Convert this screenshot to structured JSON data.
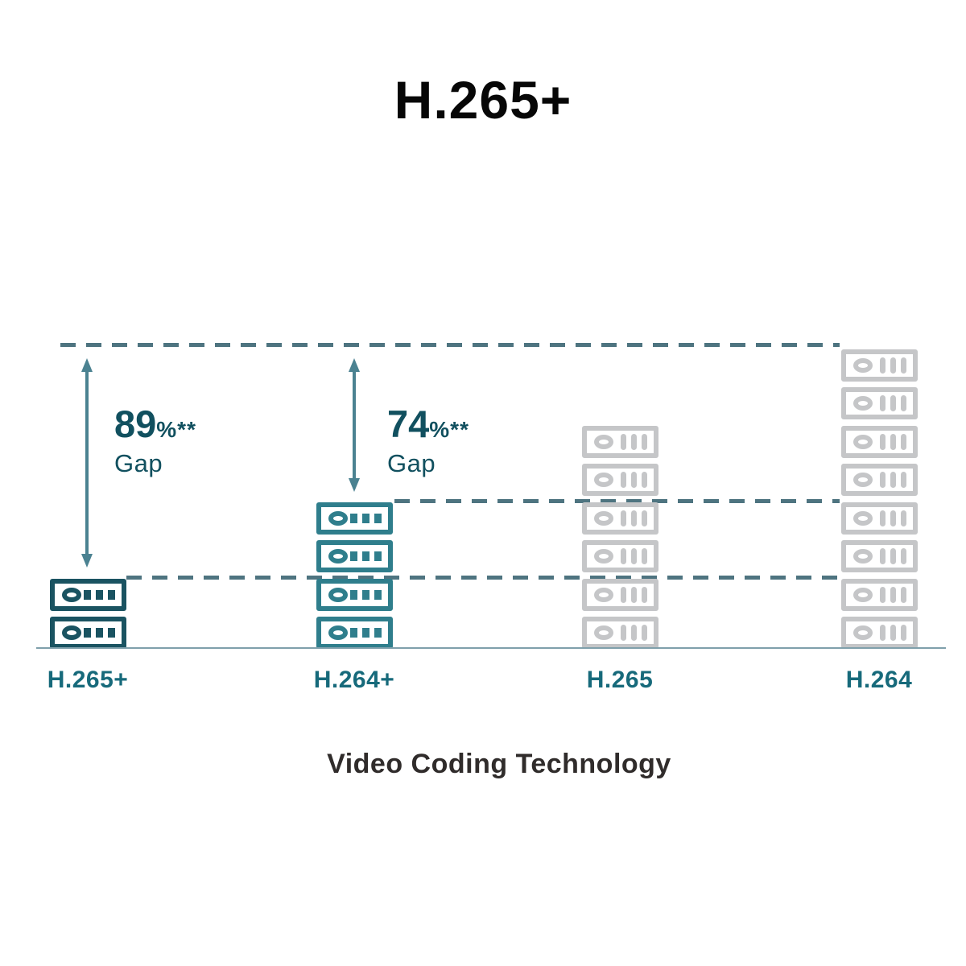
{
  "title": "H.265+",
  "xlabel": "Video Coding Technology",
  "gaps": [
    {
      "value": "89",
      "suffix": "%**",
      "word": "Gap"
    },
    {
      "value": "74",
      "suffix": "%**",
      "word": "Gap"
    }
  ],
  "stacks": [
    {
      "label": "H.265+",
      "units": 2,
      "variant": "dark",
      "icon": "storage-server-icon"
    },
    {
      "label": "H.264+",
      "units": 4,
      "variant": "teal",
      "icon": "storage-server-icon"
    },
    {
      "label": "H.265",
      "units": 6,
      "variant": "gray",
      "icon": "storage-server-icon"
    },
    {
      "label": "H.264",
      "units": 8,
      "variant": "gray",
      "icon": "storage-server-icon"
    }
  ],
  "colors": {
    "dark_teal": "#1a5361",
    "teal": "#2f7e8c",
    "gray": "#c5c6c8",
    "dash": "#4e7480",
    "arrow": "#4b8291",
    "gap_text": "#11505f",
    "label_text": "#176a7b",
    "baseline": "#7fa0ab",
    "title": "#070707",
    "xlabel_text": "#302c2b"
  },
  "chart_data": {
    "type": "bar",
    "title": "H.265+",
    "xlabel": "Video Coding Technology",
    "ylabel": "",
    "categories": [
      "H.265+",
      "H.264+",
      "H.265",
      "H.264"
    ],
    "values": [
      2,
      4,
      6,
      8
    ],
    "value_unit": "stacked storage-server icons (relative bitrate / storage need)",
    "ylim": [
      0,
      8
    ],
    "reference_lines": [
      {
        "level": 8,
        "style": "dashed"
      },
      {
        "level": 4,
        "style": "dashed"
      },
      {
        "level": 2,
        "style": "dashed"
      }
    ],
    "annotations": [
      {
        "category": "H.265+",
        "text": "89%** Gap",
        "from_level": 8,
        "to_level": 2
      },
      {
        "category": "H.264+",
        "text": "74%** Gap",
        "from_level": 8,
        "to_level": 4
      }
    ],
    "grid": false,
    "legend": false,
    "series_colors": [
      "#1a5361",
      "#2f7e8c",
      "#c5c6c8",
      "#c5c6c8"
    ]
  }
}
